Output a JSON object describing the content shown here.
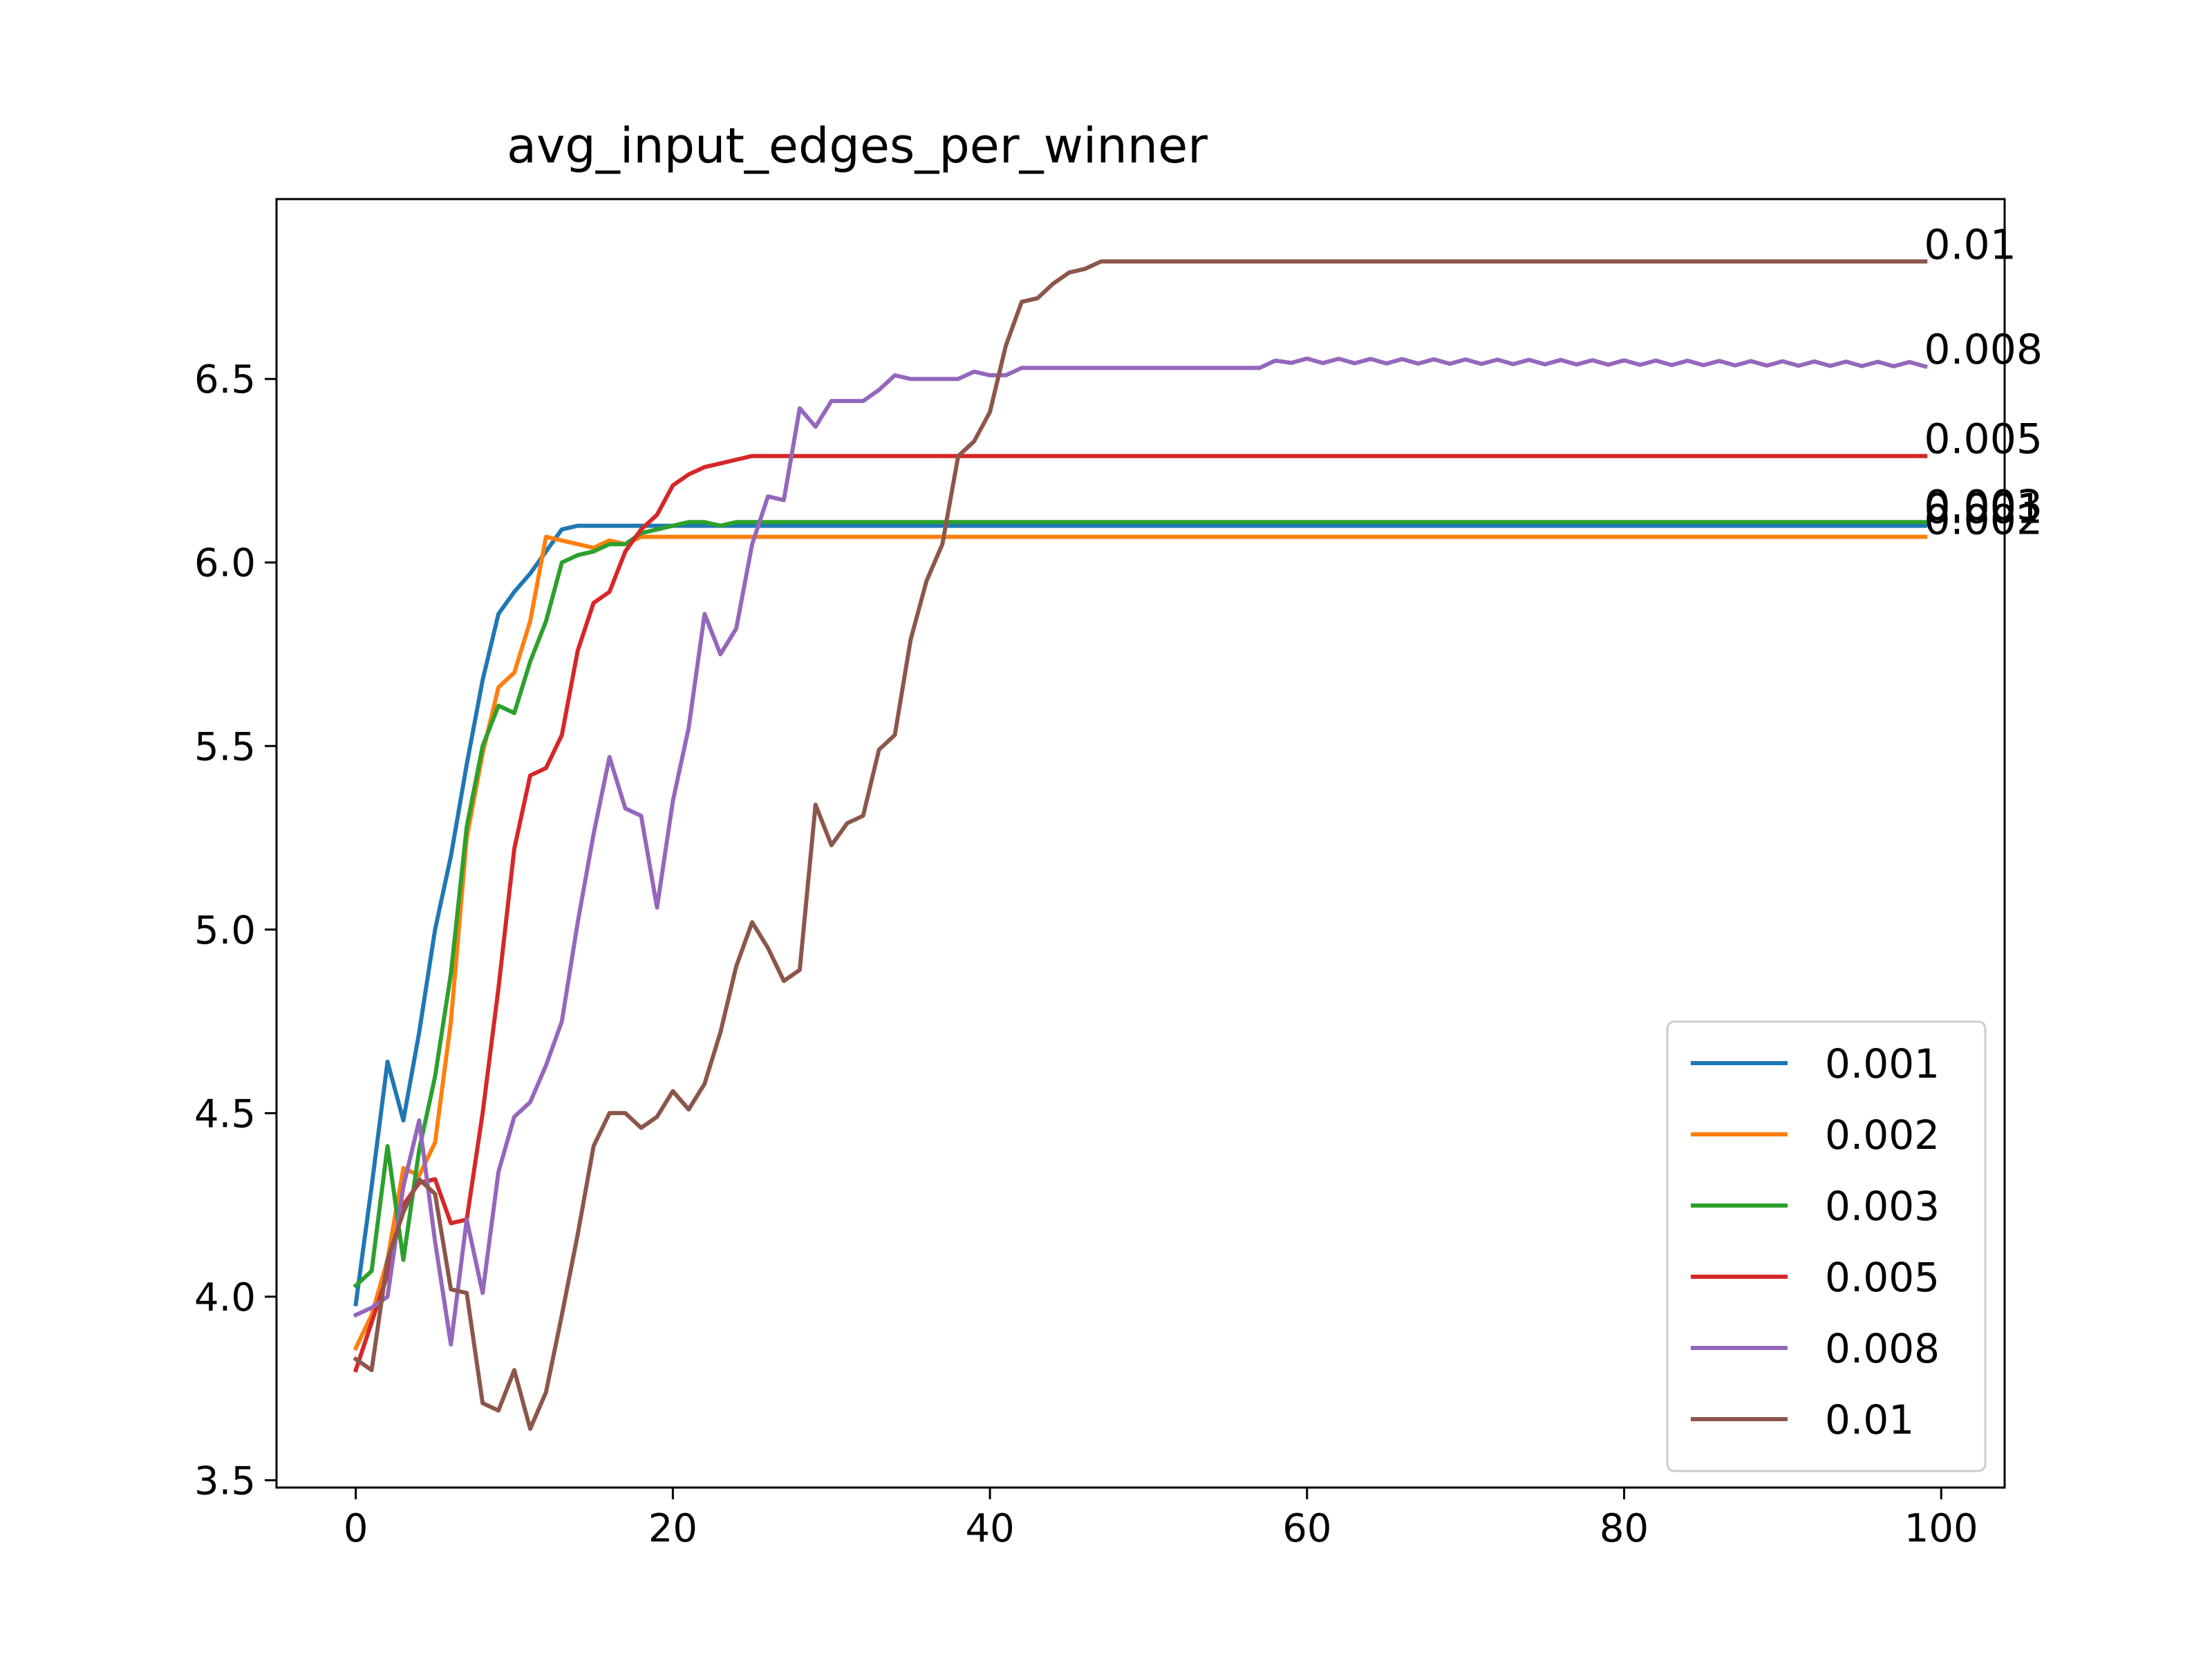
{
  "chart_data": {
    "type": "line",
    "title": "avg_input_edges_per_winner",
    "xlabel": "",
    "ylabel": "",
    "xlim": [
      -5,
      104
    ],
    "ylim": [
      3.48,
      6.99
    ],
    "xticks": [
      0,
      20,
      40,
      60,
      80,
      100
    ],
    "xtick_labels": [
      "0",
      "20",
      "40",
      "60",
      "80",
      "100"
    ],
    "yticks": [
      3.5,
      4.0,
      4.5,
      5.0,
      5.5,
      6.0,
      6.5
    ],
    "ytick_labels": [
      "3.5",
      "4.0",
      "4.5",
      "5.0",
      "5.5",
      "6.0",
      "6.5"
    ],
    "grid": false,
    "legend_position": "lower right",
    "x_range": [
      0,
      99
    ],
    "series": [
      {
        "name": "0.001",
        "color": "#1f77b4",
        "end_label": "0.001",
        "keypoints": [
          [
            0,
            3.98
          ],
          [
            1,
            4.3
          ],
          [
            2,
            4.64
          ],
          [
            3,
            4.48
          ],
          [
            4,
            4.72
          ],
          [
            5,
            5.0
          ],
          [
            6,
            5.2
          ],
          [
            7,
            5.45
          ],
          [
            8,
            5.68
          ],
          [
            9,
            5.86
          ],
          [
            10,
            5.92
          ],
          [
            11,
            5.97
          ],
          [
            12,
            6.03
          ],
          [
            13,
            6.09
          ],
          [
            14,
            6.1
          ],
          [
            99,
            6.1
          ]
        ]
      },
      {
        "name": "0.002",
        "color": "#ff7f0e",
        "end_label": "0.002",
        "keypoints": [
          [
            0,
            3.86
          ],
          [
            1,
            3.95
          ],
          [
            2,
            4.1
          ],
          [
            3,
            4.35
          ],
          [
            4,
            4.33
          ],
          [
            5,
            4.42
          ],
          [
            6,
            4.75
          ],
          [
            7,
            5.25
          ],
          [
            8,
            5.48
          ],
          [
            9,
            5.66
          ],
          [
            10,
            5.7
          ],
          [
            11,
            5.84
          ],
          [
            12,
            6.07
          ],
          [
            13,
            6.06
          ],
          [
            14,
            6.05
          ],
          [
            15,
            6.04
          ],
          [
            16,
            6.06
          ],
          [
            17,
            6.05
          ],
          [
            18,
            6.07
          ],
          [
            99,
            6.07
          ]
        ]
      },
      {
        "name": "0.003",
        "color": "#2ca02c",
        "end_label": "0.003",
        "keypoints": [
          [
            0,
            4.03
          ],
          [
            1,
            4.07
          ],
          [
            2,
            4.41
          ],
          [
            3,
            4.1
          ],
          [
            4,
            4.4
          ],
          [
            5,
            4.6
          ],
          [
            6,
            4.88
          ],
          [
            7,
            5.28
          ],
          [
            8,
            5.5
          ],
          [
            9,
            5.61
          ],
          [
            10,
            5.59
          ],
          [
            11,
            5.73
          ],
          [
            12,
            5.84
          ],
          [
            13,
            6.0
          ],
          [
            14,
            6.02
          ],
          [
            15,
            6.03
          ],
          [
            16,
            6.05
          ],
          [
            17,
            6.05
          ],
          [
            18,
            6.08
          ],
          [
            19,
            6.09
          ],
          [
            20,
            6.1
          ],
          [
            21,
            6.11
          ],
          [
            22,
            6.11
          ],
          [
            23,
            6.1
          ],
          [
            24,
            6.11
          ],
          [
            25,
            6.11
          ],
          [
            99,
            6.11
          ]
        ]
      },
      {
        "name": "0.005",
        "color": "#d62728",
        "end_label": "0.005",
        "keypoints": [
          [
            0,
            3.8
          ],
          [
            1,
            3.93
          ],
          [
            2,
            4.06
          ],
          [
            3,
            4.25
          ],
          [
            4,
            4.31
          ],
          [
            5,
            4.32
          ],
          [
            6,
            4.2
          ],
          [
            7,
            4.21
          ],
          [
            8,
            4.5
          ],
          [
            9,
            4.84
          ],
          [
            10,
            5.22
          ],
          [
            11,
            5.42
          ],
          [
            12,
            5.44
          ],
          [
            13,
            5.53
          ],
          [
            14,
            5.76
          ],
          [
            15,
            5.89
          ],
          [
            16,
            5.92
          ],
          [
            17,
            6.03
          ],
          [
            18,
            6.09
          ],
          [
            19,
            6.13
          ],
          [
            20,
            6.21
          ],
          [
            21,
            6.24
          ],
          [
            22,
            6.26
          ],
          [
            23,
            6.27
          ],
          [
            24,
            6.28
          ],
          [
            25,
            6.29
          ],
          [
            99,
            6.29
          ]
        ]
      },
      {
        "name": "0.008",
        "color": "#9467bd",
        "end_label": "0.008",
        "keypoints": [
          [
            0,
            3.95
          ],
          [
            1,
            3.97
          ],
          [
            2,
            4.0
          ],
          [
            3,
            4.3
          ],
          [
            4,
            4.48
          ],
          [
            5,
            4.15
          ],
          [
            6,
            3.87
          ],
          [
            7,
            4.21
          ],
          [
            8,
            4.01
          ],
          [
            9,
            4.34
          ],
          [
            10,
            4.49
          ],
          [
            11,
            4.53
          ],
          [
            12,
            4.63
          ],
          [
            13,
            4.75
          ],
          [
            14,
            5.02
          ],
          [
            15,
            5.26
          ],
          [
            16,
            5.47
          ],
          [
            17,
            5.33
          ],
          [
            18,
            5.31
          ],
          [
            19,
            5.06
          ],
          [
            20,
            5.35
          ],
          [
            21,
            5.55
          ],
          [
            22,
            5.86
          ],
          [
            23,
            5.75
          ],
          [
            24,
            5.82
          ],
          [
            25,
            6.05
          ],
          [
            26,
            6.18
          ],
          [
            27,
            6.17
          ],
          [
            28,
            6.42
          ],
          [
            29,
            6.37
          ],
          [
            30,
            6.44
          ],
          [
            31,
            6.44
          ],
          [
            32,
            6.44
          ],
          [
            33,
            6.47
          ],
          [
            34,
            6.51
          ],
          [
            35,
            6.5
          ],
          [
            36,
            6.5
          ],
          [
            37,
            6.5
          ],
          [
            38,
            6.5
          ],
          [
            39,
            6.52
          ],
          [
            40,
            6.51
          ],
          [
            41,
            6.51
          ],
          [
            42,
            6.53
          ],
          [
            50,
            6.53
          ],
          [
            57,
            6.53
          ],
          [
            58,
            6.55
          ],
          [
            99,
            6.54
          ]
        ]
      },
      {
        "name": "0.01",
        "color": "#8c564b",
        "end_label": "0.01",
        "keypoints": [
          [
            0,
            3.83
          ],
          [
            1,
            3.8
          ],
          [
            2,
            4.1
          ],
          [
            3,
            4.23
          ],
          [
            4,
            4.32
          ],
          [
            5,
            4.28
          ],
          [
            6,
            4.02
          ],
          [
            7,
            4.01
          ],
          [
            8,
            3.71
          ],
          [
            9,
            3.69
          ],
          [
            10,
            3.8
          ],
          [
            11,
            3.64
          ],
          [
            12,
            3.74
          ],
          [
            13,
            3.95
          ],
          [
            14,
            4.17
          ],
          [
            15,
            4.41
          ],
          [
            16,
            4.5
          ],
          [
            17,
            4.5
          ],
          [
            18,
            4.46
          ],
          [
            19,
            4.49
          ],
          [
            20,
            4.56
          ],
          [
            21,
            4.51
          ],
          [
            22,
            4.58
          ],
          [
            23,
            4.72
          ],
          [
            24,
            4.9
          ],
          [
            25,
            5.02
          ],
          [
            26,
            4.95
          ],
          [
            27,
            4.86
          ],
          [
            28,
            4.89
          ],
          [
            29,
            5.34
          ],
          [
            30,
            5.23
          ],
          [
            31,
            5.29
          ],
          [
            32,
            5.31
          ],
          [
            33,
            5.49
          ],
          [
            34,
            5.53
          ],
          [
            35,
            5.79
          ],
          [
            36,
            5.95
          ],
          [
            37,
            6.05
          ],
          [
            38,
            6.29
          ],
          [
            39,
            6.33
          ],
          [
            40,
            6.41
          ],
          [
            41,
            6.59
          ],
          [
            42,
            6.71
          ],
          [
            43,
            6.72
          ],
          [
            44,
            6.76
          ],
          [
            45,
            6.79
          ],
          [
            46,
            6.8
          ],
          [
            47,
            6.82
          ],
          [
            99,
            6.82
          ]
        ]
      }
    ]
  }
}
